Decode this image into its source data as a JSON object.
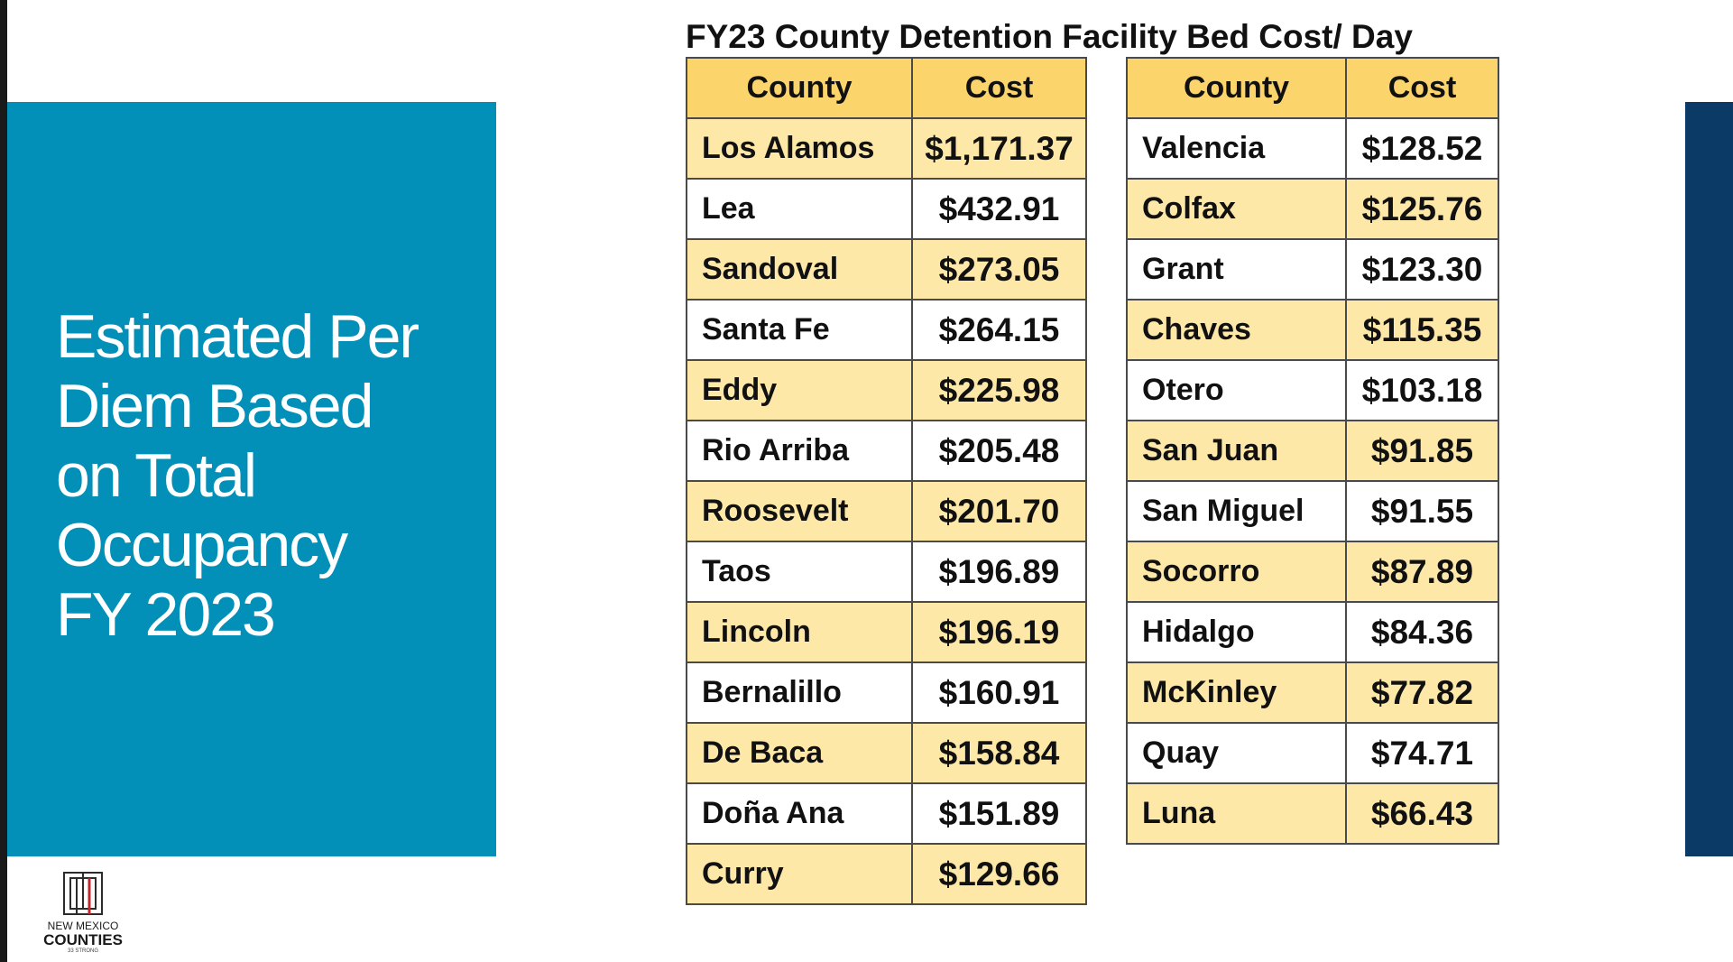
{
  "panel": {
    "title": "Estimated Per\nDiem Based\non Total\nOccupancy\nFY 2023"
  },
  "table_title": "FY23 County Detention Facility Bed Cost/  Day",
  "headers": {
    "county": "County",
    "cost": "Cost"
  },
  "left_table": [
    {
      "county": "Los Alamos",
      "cost": "$1,171.37"
    },
    {
      "county": "Lea",
      "cost": "$432.91"
    },
    {
      "county": "Sandoval",
      "cost": "$273.05"
    },
    {
      "county": "Santa Fe",
      "cost": "$264.15"
    },
    {
      "county": "Eddy",
      "cost": "$225.98"
    },
    {
      "county": "Rio Arriba",
      "cost": "$205.48"
    },
    {
      "county": "Roosevelt",
      "cost": "$201.70"
    },
    {
      "county": "Taos",
      "cost": "$196.89"
    },
    {
      "county": "Lincoln",
      "cost": "$196.19"
    },
    {
      "county": "Bernalillo",
      "cost": "$160.91"
    },
    {
      "county": "De Baca",
      "cost": "$158.84"
    },
    {
      "county": "Doña Ana",
      "cost": "$151.89"
    },
    {
      "county": "Curry",
      "cost": "$129.66"
    }
  ],
  "right_table": [
    {
      "county": "Valencia",
      "cost": "$128.52"
    },
    {
      "county": "Colfax",
      "cost": "$125.76"
    },
    {
      "county": "Grant",
      "cost": "$123.30"
    },
    {
      "county": "Chaves",
      "cost": "$115.35"
    },
    {
      "county": "Otero",
      "cost": "$103.18"
    },
    {
      "county": "San Juan",
      "cost": "$91.85"
    },
    {
      "county": "San Miguel",
      "cost": "$91.55"
    },
    {
      "county": "Socorro",
      "cost": "$87.89"
    },
    {
      "county": "Hidalgo",
      "cost": "$84.36"
    },
    {
      "county": "McKinley",
      "cost": "$77.82"
    },
    {
      "county": "Quay",
      "cost": "$74.71"
    },
    {
      "county": "Luna",
      "cost": "$66.43"
    }
  ],
  "logo": {
    "line1": "NEW MEXICO",
    "line2": "COUNTIES",
    "line3": "33 STRONG"
  },
  "colors": {
    "panel_blue": "#0390b8",
    "navy_bar": "#0b3a66",
    "header_yellow": "#fbd56c",
    "row_yellow": "#fde8a8",
    "logo_red": "#c0272d"
  }
}
